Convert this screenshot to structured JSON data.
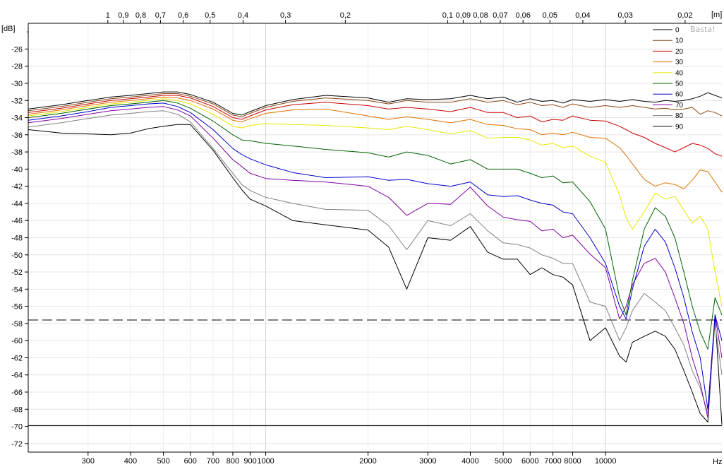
{
  "chart_data": {
    "type": "line",
    "ylabel": "[dB]",
    "x_unit_label": "Hz",
    "top_unit_label": "[m]",
    "watermark": "Basta!",
    "x_scale": "log",
    "xlim": [
      200,
      22000
    ],
    "ylim": [
      -73,
      -23
    ],
    "grid": true,
    "legend_placement": "top-right",
    "y_ticks": [
      -26,
      -28,
      -30,
      -32,
      -34,
      -36,
      -38,
      -40,
      -42,
      -44,
      -46,
      -48,
      -50,
      -52,
      -54,
      -56,
      -58,
      -60,
      -62,
      -64,
      -66,
      -68,
      -70,
      -72
    ],
    "x_ticks": [
      {
        "v": 300,
        "label": "300"
      },
      {
        "v": 400,
        "label": "400"
      },
      {
        "v": 500,
        "label": "500"
      },
      {
        "v": 600,
        "label": "600"
      },
      {
        "v": 700,
        "label": "700"
      },
      {
        "v": 800,
        "label": "800"
      },
      {
        "v": 900,
        "label": "900"
      },
      {
        "v": 1000,
        "label": "1000"
      },
      {
        "v": 2000,
        "label": "2000"
      },
      {
        "v": 3000,
        "label": "3000"
      },
      {
        "v": 4000,
        "label": "4000"
      },
      {
        "v": 5000,
        "label": "5000"
      },
      {
        "v": 6000,
        "label": "6000"
      },
      {
        "v": 7000,
        "label": "7000"
      },
      {
        "v": 8000,
        "label": "8000"
      },
      {
        "v": 10000,
        "label": "10000"
      }
    ],
    "top_ticks": [
      {
        "m": 1,
        "label": "1"
      },
      {
        "m": 0.9,
        "label": "0,9"
      },
      {
        "m": 0.8,
        "label": "0,8"
      },
      {
        "m": 0.7,
        "label": "0,7"
      },
      {
        "m": 0.6,
        "label": "0,6"
      },
      {
        "m": 0.5,
        "label": "0,5"
      },
      {
        "m": 0.4,
        "label": "0,4"
      },
      {
        "m": 0.3,
        "label": "0,3"
      },
      {
        "m": 0.2,
        "label": "0,2"
      },
      {
        "m": 0.1,
        "label": "0,1"
      },
      {
        "m": 0.09,
        "label": "0,09"
      },
      {
        "m": 0.08,
        "label": "0,08"
      },
      {
        "m": 0.07,
        "label": "0,07"
      },
      {
        "m": 0.06,
        "label": "0,06"
      },
      {
        "m": 0.05,
        "label": "0,05"
      },
      {
        "m": 0.04,
        "label": "0,04"
      },
      {
        "m": 0.03,
        "label": "0,03"
      },
      {
        "m": 0.02,
        "label": "0,02"
      }
    ],
    "reference_lines": [
      {
        "y": -57.6,
        "style": "dashed"
      },
      {
        "y": -69.9,
        "style": "solid"
      }
    ],
    "x": [
      200,
      250,
      300,
      350,
      400,
      450,
      500,
      550,
      600,
      700,
      800,
      850,
      900,
      1000,
      1200,
      1500,
      2000,
      2300,
      2600,
      3000,
      3500,
      4000,
      4500,
      5000,
      5500,
      6000,
      6500,
      7000,
      7500,
      8000,
      9000,
      10000,
      11000,
      11500,
      12000,
      13000,
      14000,
      15000,
      16000,
      17000,
      18000,
      19000,
      20000,
      21000,
      22000
    ],
    "series": [
      {
        "name": "0",
        "color": "#000000",
        "values": [
          -33.0,
          -32.5,
          -32.0,
          -31.6,
          -31.4,
          -31.2,
          -31.0,
          -31.0,
          -31.3,
          -32.2,
          -33.5,
          -33.7,
          -33.3,
          -32.6,
          -31.9,
          -31.4,
          -31.7,
          -32.2,
          -31.8,
          -31.9,
          -31.8,
          -31.4,
          -31.8,
          -31.6,
          -32.2,
          -31.8,
          -32.1,
          -32.0,
          -32.3,
          -31.9,
          -32.1,
          -31.9,
          -32.1,
          -32.0,
          -31.9,
          -32.1,
          -32.2,
          -32.0,
          -32.1,
          -32.0,
          -31.8,
          -31.5,
          -31.1,
          -31.4,
          -31.7
        ]
      },
      {
        "name": "10",
        "color": "#8b4513",
        "values": [
          -33.2,
          -32.7,
          -32.2,
          -31.8,
          -31.6,
          -31.4,
          -31.2,
          -31.2,
          -31.5,
          -32.4,
          -33.7,
          -33.9,
          -33.5,
          -32.8,
          -32.1,
          -31.7,
          -32.0,
          -32.4,
          -32.0,
          -32.2,
          -32.2,
          -31.8,
          -32.2,
          -32.0,
          -32.5,
          -32.2,
          -32.6,
          -32.5,
          -32.8,
          -32.4,
          -32.8,
          -32.6,
          -32.8,
          -32.7,
          -32.6,
          -32.8,
          -33.0,
          -32.9,
          -33.1,
          -33.0,
          -32.8,
          -33.6,
          -33.2,
          -33.4,
          -33.8
        ]
      },
      {
        "name": "20",
        "color": "#c80000",
        "values": [
          -33.4,
          -32.9,
          -32.4,
          -32.0,
          -31.8,
          -31.6,
          -31.4,
          -31.4,
          -31.7,
          -32.7,
          -34.0,
          -34.2,
          -33.8,
          -33.1,
          -32.5,
          -32.2,
          -32.6,
          -33.0,
          -32.8,
          -33.0,
          -33.3,
          -32.8,
          -33.4,
          -33.4,
          -34.0,
          -33.8,
          -34.5,
          -34.2,
          -34.3,
          -33.8,
          -34.3,
          -34.4,
          -35.0,
          -35.4,
          -35.8,
          -36.3,
          -37.0,
          -37.5,
          -38.0,
          -37.5,
          -37.0,
          -37.2,
          -37.6,
          -38.2,
          -38.5
        ]
      },
      {
        "name": "30",
        "color": "#e07000",
        "values": [
          -33.6,
          -33.1,
          -32.6,
          -32.2,
          -32.0,
          -31.8,
          -31.6,
          -31.7,
          -32.0,
          -33.0,
          -34.3,
          -34.5,
          -34.1,
          -33.5,
          -33.1,
          -33.0,
          -33.8,
          -34.2,
          -33.9,
          -34.2,
          -34.6,
          -34.2,
          -34.8,
          -34.9,
          -35.3,
          -35.4,
          -36.0,
          -35.8,
          -36.0,
          -35.7,
          -36.3,
          -36.4,
          -37.5,
          -38.4,
          -39.4,
          -41.2,
          -42.0,
          -41.6,
          -41.8,
          -42.3,
          -41.3,
          -40.1,
          -40.3,
          -41.5,
          -42.7
        ]
      },
      {
        "name": "40",
        "color": "#e8e800",
        "values": [
          -33.8,
          -33.3,
          -32.8,
          -32.4,
          -32.2,
          -32.0,
          -31.8,
          -32.0,
          -32.4,
          -33.6,
          -35.0,
          -35.2,
          -34.9,
          -34.7,
          -34.8,
          -34.9,
          -35.2,
          -35.4,
          -35.0,
          -35.4,
          -35.9,
          -35.5,
          -36.4,
          -36.3,
          -36.3,
          -36.6,
          -37.2,
          -37.0,
          -37.5,
          -37.3,
          -38.5,
          -39.2,
          -43.0,
          -45.7,
          -47.0,
          -45.0,
          -42.8,
          -43.5,
          -43.2,
          -44.8,
          -46.3,
          -45.5,
          -47.0,
          -52.0,
          -56.0
        ]
      },
      {
        "name": "50",
        "color": "#006400",
        "values": [
          -34.0,
          -33.5,
          -33.0,
          -32.6,
          -32.4,
          -32.2,
          -32.0,
          -32.3,
          -32.9,
          -34.4,
          -36.0,
          -36.6,
          -36.7,
          -37.0,
          -37.3,
          -37.7,
          -38.1,
          -38.6,
          -38.0,
          -38.4,
          -39.4,
          -38.9,
          -40.0,
          -40.0,
          -40.0,
          -40.5,
          -41.0,
          -40.8,
          -41.6,
          -41.5,
          -43.8,
          -47.0,
          -55.0,
          -57.0,
          -53.0,
          -47.0,
          -44.5,
          -45.5,
          -48.0,
          -52.0,
          -56.0,
          -59.0,
          -61.0,
          -55.0,
          -57.0
        ]
      },
      {
        "name": "60",
        "color": "#0000cc",
        "values": [
          -34.3,
          -33.8,
          -33.3,
          -32.8,
          -32.6,
          -32.4,
          -32.3,
          -32.7,
          -33.4,
          -35.4,
          -37.6,
          -38.3,
          -38.8,
          -39.5,
          -40.4,
          -41.0,
          -40.9,
          -41.3,
          -41.2,
          -41.7,
          -42.0,
          -41.5,
          -43.0,
          -43.2,
          -43.1,
          -43.6,
          -44.0,
          -44.2,
          -45.0,
          -45.2,
          -48.0,
          -51.0,
          -56.0,
          -57.5,
          -54.0,
          -49.0,
          -47.0,
          -48.5,
          -51.5,
          -55.0,
          -59.0,
          -62.0,
          -68.0,
          -57.0,
          -60.0
        ]
      },
      {
        "name": "70",
        "color": "#8000a0",
        "values": [
          -34.6,
          -34.1,
          -33.6,
          -33.2,
          -33.0,
          -32.8,
          -32.7,
          -33.1,
          -33.8,
          -36.4,
          -38.9,
          -39.7,
          -40.5,
          -41.1,
          -41.3,
          -41.5,
          -42.0,
          -43.3,
          -45.4,
          -44.0,
          -44.1,
          -42.1,
          -44.3,
          -45.6,
          -45.9,
          -46.1,
          -47.2,
          -47.0,
          -48.0,
          -47.7,
          -49.9,
          -51.5,
          -57.5,
          -56.0,
          -53.5,
          -51.0,
          -50.4,
          -52.0,
          -55.0,
          -58.0,
          -62.0,
          -65.0,
          -69.0,
          -57.0,
          -62.0
        ]
      },
      {
        "name": "80",
        "color": "#808080",
        "values": [
          -35.1,
          -34.6,
          -34.1,
          -33.7,
          -33.5,
          -33.3,
          -33.2,
          -33.6,
          -34.5,
          -37.6,
          -40.5,
          -41.8,
          -42.5,
          -43.3,
          -44.0,
          -44.7,
          -44.8,
          -46.6,
          -49.4,
          -46.0,
          -46.6,
          -45.2,
          -47.2,
          -48.6,
          -48.8,
          -49.2,
          -50.0,
          -50.4,
          -51.0,
          -51.0,
          -55.5,
          -56.0,
          -60.0,
          -58.5,
          -56.5,
          -54.5,
          -55.5,
          -56.5,
          -58.5,
          -60.5,
          -63.5,
          -65.5,
          -68.5,
          -58.0,
          -64.0
        ]
      },
      {
        "name": "90",
        "color": "#000000",
        "values": [
          -35.4,
          -35.8,
          -35.9,
          -36.0,
          -35.8,
          -35.3,
          -35.0,
          -34.8,
          -34.8,
          -37.8,
          -41.0,
          -42.4,
          -43.5,
          -44.3,
          -46.0,
          -46.5,
          -47.1,
          -49.1,
          -54.0,
          -48.0,
          -48.3,
          -46.7,
          -49.7,
          -50.5,
          -50.5,
          -52.3,
          -51.5,
          -52.3,
          -52.6,
          -53.5,
          -60.0,
          -58.5,
          -61.8,
          -62.5,
          -60.2,
          -59.5,
          -58.9,
          -59.5,
          -61.0,
          -63.5,
          -66.0,
          -68.5,
          -69.5,
          -57.0,
          -69.8
        ]
      }
    ]
  }
}
